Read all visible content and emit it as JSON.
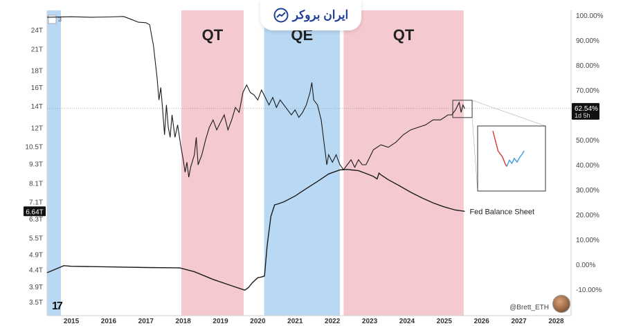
{
  "brand": {
    "name": "ایران بروکر",
    "icon": "chart-trend-icon"
  },
  "credit": "@Brett_ETH",
  "top_left_marker": "3",
  "chart_data": {
    "type": "line",
    "x_axis": {
      "ticks": [
        "2015",
        "2016",
        "2017",
        "2018",
        "2019",
        "2020",
        "2021",
        "2022",
        "2023",
        "2024",
        "2025",
        "2026",
        "2027",
        "2028"
      ],
      "range": [
        2014.35,
        2028.4
      ]
    },
    "left_axis": {
      "ticks": [
        "24T",
        "21T",
        "18T",
        "16T",
        "14T",
        "12T",
        "10.5T",
        "9.3T",
        "8.1T",
        "7.1T",
        "6.3T",
        "5.5T",
        "4.9T",
        "4.4T",
        "3.9T",
        "3.5T"
      ],
      "scale": "log"
    },
    "right_axis": {
      "ticks": [
        "100.00%",
        "90.00%",
        "80.00%",
        "70.00%",
        "60.00%",
        "50.00%",
        "40.00%",
        "30.00%",
        "20.00%",
        "10.00%",
        "0.00%",
        "-10.00%"
      ],
      "range": [
        -10,
        100
      ]
    },
    "current_left_label": "6.64T",
    "current_right_label": "62.54%",
    "current_right_sublabel": "1d 5h",
    "regimes": [
      {
        "label": "",
        "kind": "QE",
        "start": 2014.35,
        "end": 2014.72
      },
      {
        "label": "QT",
        "kind": "QT",
        "start": 2017.95,
        "end": 2019.62
      },
      {
        "label": "QE",
        "kind": "QE",
        "start": 2020.17,
        "end": 2022.2
      },
      {
        "label": "QT",
        "kind": "QT",
        "start": 2022.3,
        "end": 2025.52
      }
    ],
    "colors": {
      "QT": "#f5c9d0",
      "QE": "#b9d8f3",
      "line": "#1a1a1a",
      "axis_text": "#444444"
    },
    "series": [
      {
        "name": "",
        "axis": "right",
        "points": [
          [
            2014.35,
            99.2
          ],
          [
            2015.0,
            99.4
          ],
          [
            2015.5,
            99.2
          ],
          [
            2016.0,
            99.3
          ],
          [
            2016.4,
            99.5
          ],
          [
            2016.6,
            98.4
          ],
          [
            2016.8,
            97.2
          ],
          [
            2017.0,
            97.0
          ],
          [
            2017.1,
            96.2
          ],
          [
            2017.15,
            92
          ],
          [
            2017.2,
            88
          ],
          [
            2017.3,
            75
          ],
          [
            2017.35,
            66
          ],
          [
            2017.4,
            71
          ],
          [
            2017.45,
            62
          ],
          [
            2017.5,
            52
          ],
          [
            2017.55,
            64
          ],
          [
            2017.6,
            55
          ],
          [
            2017.65,
            51
          ],
          [
            2017.7,
            60
          ],
          [
            2017.78,
            51
          ],
          [
            2017.85,
            56
          ],
          [
            2017.93,
            48
          ],
          [
            2018.0,
            42
          ],
          [
            2018.05,
            37
          ],
          [
            2018.1,
            41
          ],
          [
            2018.15,
            35
          ],
          [
            2018.2,
            39
          ],
          [
            2018.3,
            44
          ],
          [
            2018.35,
            51
          ],
          [
            2018.4,
            40
          ],
          [
            2018.5,
            44
          ],
          [
            2018.6,
            50
          ],
          [
            2018.7,
            55
          ],
          [
            2018.8,
            58
          ],
          [
            2018.9,
            54
          ],
          [
            2019.0,
            57
          ],
          [
            2019.1,
            60
          ],
          [
            2019.2,
            54
          ],
          [
            2019.3,
            58
          ],
          [
            2019.4,
            63
          ],
          [
            2019.5,
            61
          ],
          [
            2019.6,
            69
          ],
          [
            2019.7,
            72
          ],
          [
            2019.8,
            69
          ],
          [
            2019.9,
            68
          ],
          [
            2020.0,
            66
          ],
          [
            2020.1,
            70
          ],
          [
            2020.2,
            67
          ],
          [
            2020.3,
            64
          ],
          [
            2020.4,
            67
          ],
          [
            2020.5,
            63
          ],
          [
            2020.6,
            66
          ],
          [
            2020.7,
            64
          ],
          [
            2020.8,
            62
          ],
          [
            2020.9,
            60
          ],
          [
            2021.0,
            62
          ],
          [
            2021.1,
            59
          ],
          [
            2021.2,
            61
          ],
          [
            2021.3,
            64
          ],
          [
            2021.4,
            69
          ],
          [
            2021.45,
            73
          ],
          [
            2021.5,
            66
          ],
          [
            2021.6,
            64
          ],
          [
            2021.7,
            58
          ],
          [
            2021.75,
            52
          ],
          [
            2021.8,
            46
          ],
          [
            2021.85,
            40
          ],
          [
            2021.9,
            44
          ],
          [
            2022.0,
            41
          ],
          [
            2022.1,
            44
          ],
          [
            2022.2,
            40
          ],
          [
            2022.3,
            38
          ],
          [
            2022.4,
            40
          ],
          [
            2022.5,
            42
          ],
          [
            2022.6,
            39
          ],
          [
            2022.7,
            42
          ],
          [
            2022.8,
            40
          ],
          [
            2022.9,
            40
          ],
          [
            2023.0,
            43
          ],
          [
            2023.1,
            46
          ],
          [
            2023.3,
            48
          ],
          [
            2023.5,
            47
          ],
          [
            2023.7,
            49
          ],
          [
            2023.9,
            52
          ],
          [
            2024.1,
            54
          ],
          [
            2024.3,
            55
          ],
          [
            2024.5,
            56
          ],
          [
            2024.7,
            58
          ],
          [
            2024.9,
            58
          ],
          [
            2025.1,
            60
          ],
          [
            2025.2,
            60
          ],
          [
            2025.3,
            62
          ],
          [
            2025.4,
            65
          ],
          [
            2025.45,
            61
          ],
          [
            2025.5,
            64
          ],
          [
            2025.55,
            62.5
          ]
        ]
      },
      {
        "name": "Fed Balance Sheet",
        "axis": "left",
        "points": [
          [
            2014.35,
            4.3
          ],
          [
            2014.8,
            4.52
          ],
          [
            2015.0,
            4.5
          ],
          [
            2016.0,
            4.48
          ],
          [
            2017.0,
            4.46
          ],
          [
            2017.9,
            4.45
          ],
          [
            2018.3,
            4.33
          ],
          [
            2018.8,
            4.1
          ],
          [
            2019.3,
            3.92
          ],
          [
            2019.65,
            3.8
          ],
          [
            2019.75,
            3.87
          ],
          [
            2019.85,
            4.0
          ],
          [
            2020.0,
            4.15
          ],
          [
            2020.1,
            4.17
          ],
          [
            2020.18,
            4.2
          ],
          [
            2020.25,
            5.2
          ],
          [
            2020.35,
            6.4
          ],
          [
            2020.45,
            6.95
          ],
          [
            2020.55,
            7.0
          ],
          [
            2020.7,
            7.1
          ],
          [
            2021.0,
            7.4
          ],
          [
            2021.3,
            7.8
          ],
          [
            2021.6,
            8.2
          ],
          [
            2021.9,
            8.65
          ],
          [
            2022.2,
            8.9
          ],
          [
            2022.4,
            8.93
          ],
          [
            2022.7,
            8.85
          ],
          [
            2022.9,
            8.68
          ],
          [
            2023.1,
            8.5
          ],
          [
            2023.2,
            8.35
          ],
          [
            2023.25,
            8.7
          ],
          [
            2023.3,
            8.6
          ],
          [
            2023.5,
            8.3
          ],
          [
            2023.8,
            7.95
          ],
          [
            2024.1,
            7.6
          ],
          [
            2024.4,
            7.3
          ],
          [
            2024.7,
            7.05
          ],
          [
            2025.0,
            6.85
          ],
          [
            2025.3,
            6.7
          ],
          [
            2025.55,
            6.64
          ]
        ]
      }
    ],
    "inset": {
      "points": [
        [
          0,
          92
        ],
        [
          0.15,
          60
        ],
        [
          0.28,
          50
        ],
        [
          0.35,
          40
        ],
        [
          0.4,
          35
        ],
        [
          0.48,
          45
        ],
        [
          0.55,
          40
        ],
        [
          0.62,
          48
        ],
        [
          0.7,
          42
        ],
        [
          0.78,
          50
        ],
        [
          0.85,
          55
        ],
        [
          0.9,
          60
        ]
      ]
    }
  }
}
